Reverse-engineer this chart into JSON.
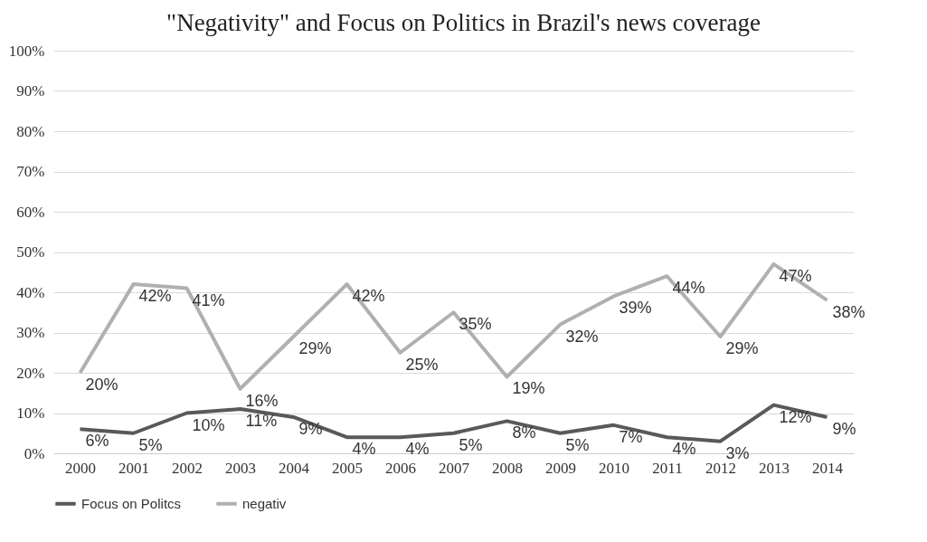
{
  "chart_data": {
    "type": "line",
    "title": "\"Negativity\" and Focus on Politics in Brazil's news coverage",
    "categories": [
      "2000",
      "2001",
      "2002",
      "2003",
      "2004",
      "2005",
      "2006",
      "2007",
      "2008",
      "2009",
      "2010",
      "2011",
      "2012",
      "2013",
      "2014"
    ],
    "series": [
      {
        "name": "Focus on Politcs",
        "color": "#595959",
        "values": [
          6,
          5,
          10,
          11,
          9,
          4,
          4,
          5,
          8,
          5,
          7,
          4,
          3,
          12,
          9
        ],
        "value_labels": [
          "6%",
          "5%",
          "10%",
          "11%",
          "9%",
          "4%",
          "4%",
          "5%",
          "8%",
          "5%",
          "7%",
          "4%",
          "3%",
          "12%",
          "9%"
        ]
      },
      {
        "name": "negativ",
        "color": "#b0b0b0",
        "values": [
          20,
          42,
          41,
          16,
          29,
          42,
          25,
          35,
          19,
          32,
          39,
          44,
          29,
          47,
          38
        ],
        "value_labels": [
          "20%",
          "42%",
          "41%",
          "16%",
          "29%",
          "42%",
          "25%",
          "35%",
          "19%",
          "32%",
          "39%",
          "44%",
          "29%",
          "47%",
          "38%"
        ]
      }
    ],
    "ylim": [
      0,
      100
    ],
    "yticks": [
      {
        "value": 0,
        "label": "0%"
      },
      {
        "value": 10,
        "label": "10%"
      },
      {
        "value": 20,
        "label": "20%"
      },
      {
        "value": 30,
        "label": "30%"
      },
      {
        "value": 40,
        "label": "40%"
      },
      {
        "value": 50,
        "label": "50%"
      },
      {
        "value": 60,
        "label": "60%"
      },
      {
        "value": 70,
        "label": "70%"
      },
      {
        "value": 80,
        "label": "80%"
      },
      {
        "value": 90,
        "label": "90%"
      },
      {
        "value": 100,
        "label": "100%"
      }
    ],
    "grid": "y",
    "legend": "bottom",
    "marker": "none",
    "line_style": "solid"
  }
}
